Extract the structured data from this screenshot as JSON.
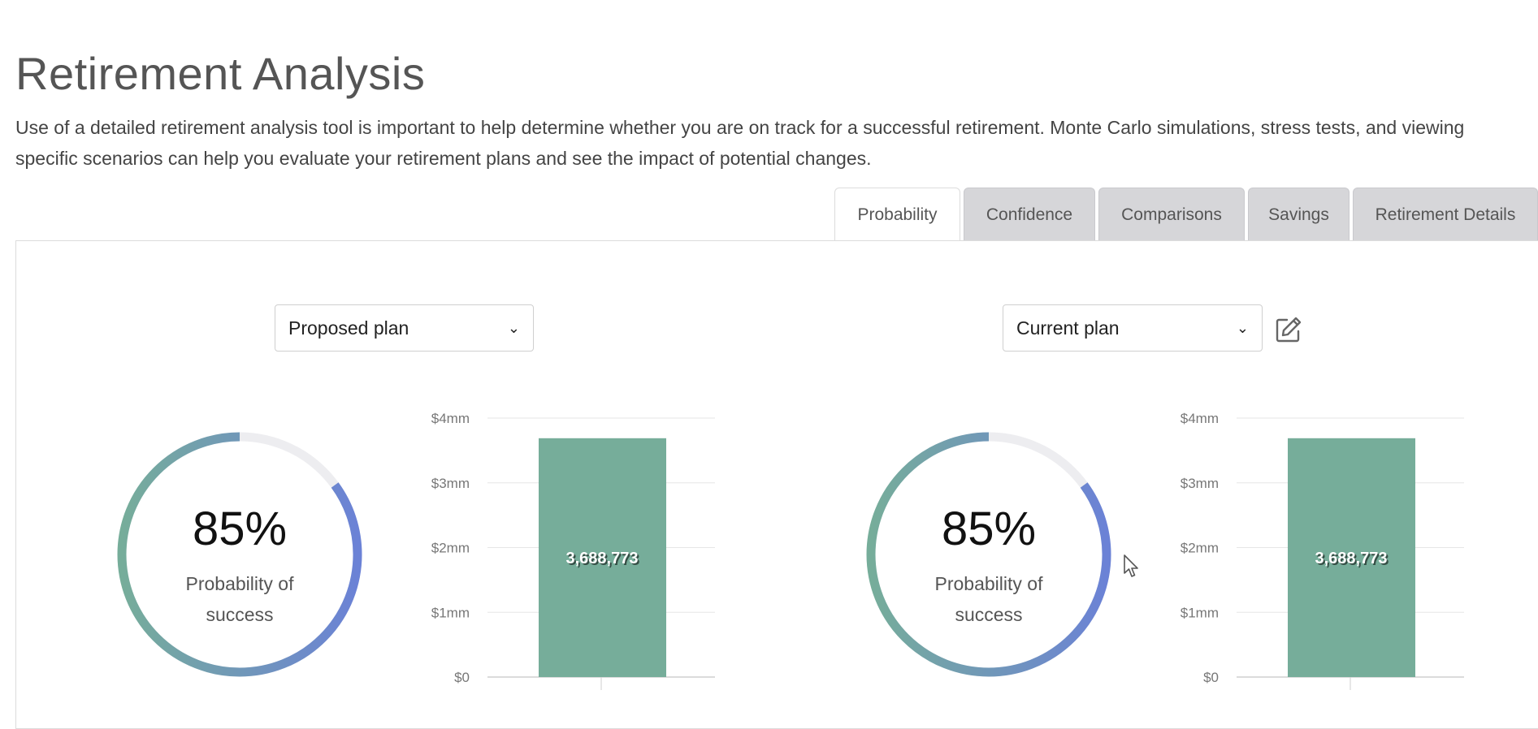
{
  "page": {
    "title": "Retirement Analysis",
    "description": "Use of a detailed retirement analysis tool is important to help determine whether you are on track for a successful retirement. Monte Carlo simulations, stress tests, and viewing specific scenarios can help you evaluate your retirement plans and see the impact of potential changes."
  },
  "tabs": [
    {
      "label": "Probability",
      "active": true
    },
    {
      "label": "Confidence",
      "active": false
    },
    {
      "label": "Comparisons",
      "active": false
    },
    {
      "label": "Savings",
      "active": false
    },
    {
      "label": "Retirement Details",
      "active": false
    }
  ],
  "left_panel": {
    "plan_select": "Proposed plan",
    "probability": {
      "value_text": "85%",
      "label": "Probability of success",
      "fraction": 0.85
    }
  },
  "right_panel": {
    "plan_select": "Current plan",
    "edit_icon": "pencil-edit-icon",
    "probability": {
      "value_text": "85%",
      "label": "Probability of success",
      "fraction": 0.85
    }
  },
  "colors": {
    "arc_blue": "#6b82d6",
    "arc_teal": "#76ad9a",
    "track": "#ededf0",
    "bar": "#76ad9a",
    "grid": "#e6e6e6"
  },
  "chart_data": [
    {
      "type": "bar",
      "categories": [
        ""
      ],
      "values": [
        3688773
      ],
      "data_labels": [
        "3,688,773"
      ],
      "ytick_labels": [
        "$0",
        "$1mm",
        "$2mm",
        "$3mm",
        "$4mm"
      ],
      "ylim": [
        0,
        4000000
      ],
      "grid": true
    },
    {
      "type": "bar",
      "categories": [
        ""
      ],
      "values": [
        3688773
      ],
      "data_labels": [
        "3,688,773"
      ],
      "ytick_labels": [
        "$0",
        "$1mm",
        "$2mm",
        "$3mm",
        "$4mm"
      ],
      "ylim": [
        0,
        4000000
      ],
      "grid": true
    }
  ]
}
